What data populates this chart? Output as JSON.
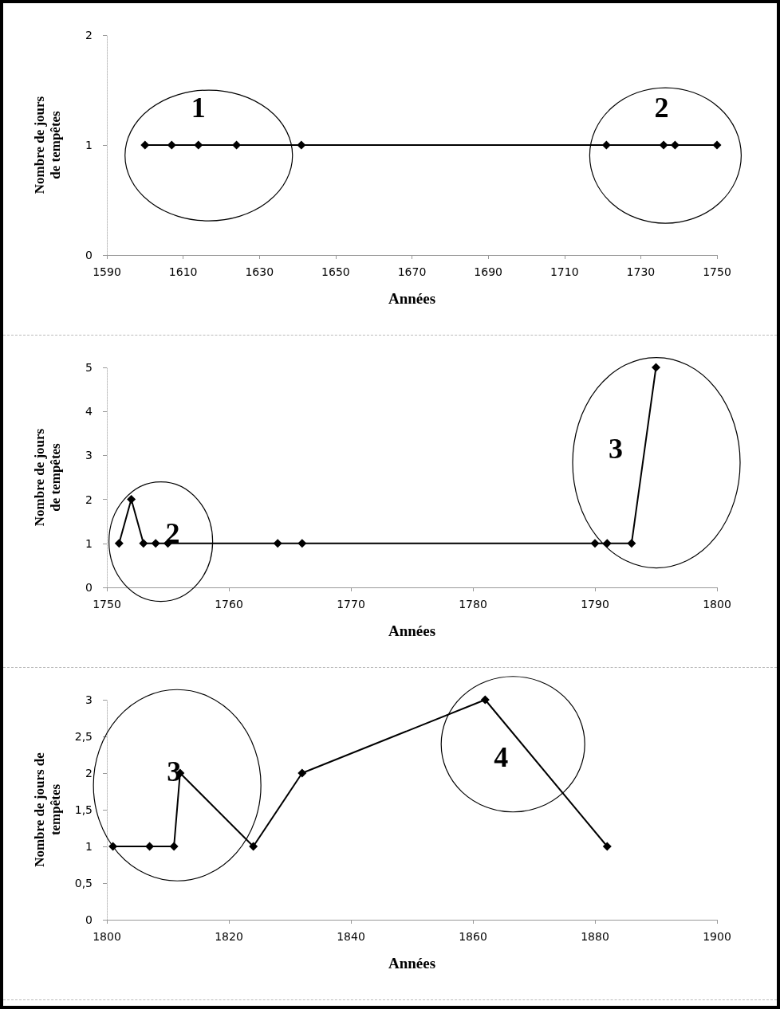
{
  "chart_data": [
    {
      "type": "line",
      "xlabel": "Années",
      "ylabel": "Nombre de jours\nde tempêtes",
      "marker": "diamond",
      "grid": false,
      "series": [
        {
          "color": "#000000",
          "x": [
            1600,
            1607,
            1614,
            1624,
            1641,
            1721,
            1736,
            1739,
            1750
          ],
          "values": [
            1,
            1,
            1,
            1,
            1,
            1,
            1,
            1,
            1
          ]
        }
      ],
      "xlim": [
        1590,
        1750
      ],
      "xticks": [
        1590,
        1610,
        1630,
        1650,
        1670,
        1690,
        1710,
        1730,
        1750
      ],
      "ylim": [
        0,
        2
      ],
      "yticks": [
        0,
        1,
        2
      ],
      "annotations": [
        "1",
        "2"
      ]
    },
    {
      "type": "line",
      "xlabel": "Années",
      "ylabel": "Nombre de jours\nde tempêtes",
      "marker": "diamond",
      "grid": false,
      "series": [
        {
          "color": "#000000",
          "x": [
            1751,
            1752,
            1753,
            1754,
            1755,
            1764,
            1766,
            1790,
            1791,
            1793,
            1795
          ],
          "values": [
            1,
            2,
            1,
            1,
            1,
            1,
            1,
            1,
            1,
            1,
            5
          ]
        }
      ],
      "xlim": [
        1750,
        1800
      ],
      "xticks": [
        1750,
        1760,
        1770,
        1780,
        1790,
        1800
      ],
      "ylim": [
        0,
        5
      ],
      "yticks": [
        0,
        1,
        2,
        3,
        4,
        5
      ],
      "annotations": [
        "2",
        "3"
      ]
    },
    {
      "type": "line",
      "xlabel": "Années",
      "ylabel": "Nombre de jours de\ntempêtes",
      "marker": "diamond",
      "grid": false,
      "series": [
        {
          "color": "#000000",
          "x": [
            1801,
            1807,
            1811,
            1812,
            1824,
            1832,
            1862,
            1882
          ],
          "values": [
            1,
            1,
            1,
            2,
            1,
            2,
            3,
            1
          ]
        }
      ],
      "xlim": [
        1800,
        1900
      ],
      "xticks": [
        1800,
        1820,
        1840,
        1860,
        1880,
        1900
      ],
      "ylim": [
        0,
        3
      ],
      "yticks": [
        0,
        {
          "value": 0.5,
          "label": "0,5"
        },
        1,
        {
          "value": 1.5,
          "label": "1,5"
        },
        2,
        {
          "value": 2.5,
          "label": "2,5"
        },
        3
      ],
      "annotations": [
        "3",
        "4"
      ]
    }
  ]
}
